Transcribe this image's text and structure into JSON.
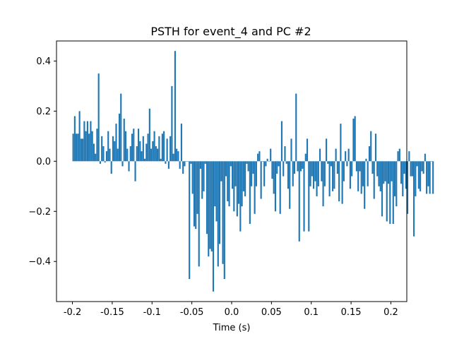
{
  "chart_data": {
    "type": "bar",
    "title": "PSTH for event_4 and PC #2",
    "xlabel": "Time (s)",
    "ylabel": "",
    "xlim": [
      -0.22,
      0.22
    ],
    "ylim": [
      -0.56,
      0.48
    ],
    "xticks": [
      -0.2,
      -0.15,
      -0.1,
      -0.05,
      0.0,
      0.05,
      0.1,
      0.15,
      0.2
    ],
    "xtick_labels": [
      "-0.2",
      "-0.15",
      "-0.1",
      "-0.05",
      "0.0",
      "0.05",
      "0.1",
      "0.15",
      "0.2"
    ],
    "yticks": [
      -0.4,
      -0.2,
      0.0,
      0.2,
      0.4
    ],
    "ytick_labels": [
      "−0.4",
      "−0.2",
      "0.0",
      "0.2",
      "0.4"
    ],
    "grid": false,
    "color": "#1f77b4",
    "bin_width": 0.0019,
    "x_start": -0.2,
    "bin_step": 0.002,
    "values": [
      0.11,
      0.18,
      0.11,
      0.11,
      0.2,
      0.09,
      0.09,
      0.16,
      0.12,
      0.16,
      0.11,
      0.16,
      0.12,
      0.07,
      0.03,
      0.13,
      0.35,
      -0.01,
      0.1,
      0.06,
      -0.005,
      0.04,
      0.12,
      0.05,
      -0.05,
      0.1,
      0.08,
      0.15,
      0.05,
      0.19,
      0.27,
      -0.02,
      0.17,
      0.12,
      0.05,
      -0.04,
      0.06,
      0.11,
      0.13,
      -0.08,
      0.06,
      0.13,
      0.08,
      0.04,
      0.1,
      0.01,
      0.07,
      0.11,
      0.21,
      0.05,
      0.08,
      0.12,
      0.06,
      0.05,
      0.1,
      0.01,
      0.11,
      0.12,
      -0.01,
      0.09,
      -0.03,
      0.1,
      0.3,
      0.03,
      0.44,
      0.05,
      0.04,
      -0.03,
      0.15,
      -0.05,
      -0.02,
      0.0,
      0.0,
      -0.47,
      -0.01,
      -0.13,
      -0.26,
      -0.27,
      -0.21,
      -0.42,
      -0.03,
      -0.15,
      -0.12,
      -0.01,
      -0.29,
      -0.38,
      -0.35,
      -0.36,
      -0.52,
      -0.18,
      -0.24,
      -0.42,
      -0.33,
      -0.08,
      -0.41,
      -0.47,
      -0.06,
      -0.16,
      -0.18,
      -0.02,
      -0.11,
      -0.2,
      -0.1,
      -0.22,
      -0.17,
      -0.28,
      -0.18,
      -0.12,
      -0.14,
      -0.01,
      -0.04,
      -0.25,
      -0.1,
      -0.05,
      -0.21,
      -0.1,
      0.03,
      0.04,
      -0.15,
      0.0,
      -0.1,
      -0.02,
      0.01,
      0.0,
      0.05,
      -0.07,
      -0.13,
      -0.2,
      -0.05,
      -0.02,
      -0.21,
      0.16,
      -0.06,
      0.06,
      -0.01,
      -0.11,
      -0.19,
      0.09,
      -0.1,
      -0.05,
      0.27,
      -0.04,
      -0.32,
      -0.04,
      -0.03,
      -0.28,
      0.03,
      0.09,
      -0.28,
      -0.1,
      -0.06,
      -0.11,
      -0.08,
      -0.14,
      -0.1,
      0.05,
      -0.08,
      -0.18,
      -0.1,
      0.09,
      -0.01,
      -0.14,
      -0.02,
      -0.12,
      -0.11,
      0.05,
      -0.05,
      -0.16,
      0.15,
      -0.17,
      -0.08,
      0.04,
      -0.02,
      0.05,
      -0.11,
      -0.06,
      0.17,
      0.18,
      -0.04,
      -0.12,
      -0.04,
      -0.13,
      -0.1,
      -0.19,
      0.01,
      -0.1,
      0.06,
      0.12,
      -0.05,
      -0.15,
      0.11,
      -0.06,
      -0.1,
      -0.12,
      -0.22,
      -0.09,
      -0.08,
      -0.24,
      -0.09,
      -0.25,
      -0.08,
      -0.25,
      -0.14,
      -0.18,
      0.04,
      0.05,
      -0.09,
      -0.14,
      -0.05,
      -0.11,
      -0.21,
      0.04,
      -0.06,
      -0.06,
      -0.3,
      -0.14,
      -0.02,
      -0.11,
      -0.12,
      -0.04,
      -0.05,
      0.03,
      -0.13,
      -0.1,
      -0.13,
      0.0,
      -0.13
    ]
  }
}
